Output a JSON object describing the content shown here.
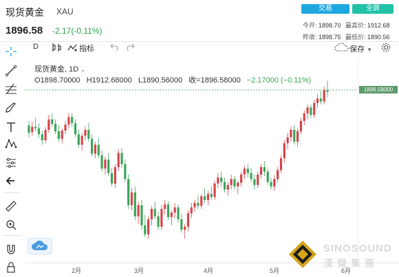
{
  "header": {
    "title": "现货黄金",
    "symbol": "XAU",
    "price": "1896.58",
    "change": "-2.17(-0.11%)",
    "trade_label": "交易",
    "fullscreen_label": "全屏",
    "stats": {
      "open_label": "今开:",
      "open": "1898.70",
      "high_label": "最高价:",
      "high": "1912.68",
      "prev_close_label": "昨收:",
      "prev_close": "1898.75",
      "low_label": "最低价:",
      "low": "1890.56"
    }
  },
  "toolbar": {
    "interval": "D",
    "indicators_label": "指标",
    "save_label": "保存"
  },
  "legend": {
    "name": "现货黄金",
    "interval": "1D",
    "open": "O1898.70000",
    "high": "H1912.68000",
    "low": "L1890.56000",
    "close": "收=1896.58000",
    "change": "−2.17000 (−0.11%)"
  },
  "price_tag": "1896.58000",
  "x_axis": [
    "2月",
    "3月",
    "4月",
    "5月",
    "6月"
  ],
  "watermark": {
    "text_en": "SINOSOUND",
    "text_cn": "漢 聲 集 團"
  },
  "colors": {
    "up": "#d8434a",
    "down": "#3aa55a",
    "accent": "#1fa8e0",
    "price_line": "#2e9d4a"
  },
  "icons": [
    "crosshair-icon",
    "trend-line-icon",
    "fib-icon",
    "brush-icon",
    "text-icon",
    "pattern-icon",
    "measure-icon",
    "back-arrow-icon",
    "ruler-icon",
    "zoom-in-icon",
    "magnet-icon",
    "lock-icon",
    "undo-icon",
    "redo-icon",
    "settings-icon",
    "cloud-icon"
  ],
  "chart_data": {
    "type": "candlestick",
    "ylim": [
      1680,
      1915
    ],
    "candles": [
      [
        1852,
        1858,
        1836,
        1842
      ],
      [
        1843,
        1857,
        1838,
        1850
      ],
      [
        1850,
        1862,
        1844,
        1848
      ],
      [
        1848,
        1855,
        1835,
        1840
      ],
      [
        1840,
        1845,
        1826,
        1832
      ],
      [
        1832,
        1850,
        1828,
        1846
      ],
      [
        1846,
        1866,
        1842,
        1860
      ],
      [
        1860,
        1868,
        1850,
        1854
      ],
      [
        1854,
        1860,
        1840,
        1844
      ],
      [
        1844,
        1852,
        1830,
        1834
      ],
      [
        1834,
        1848,
        1828,
        1845
      ],
      [
        1845,
        1858,
        1840,
        1853
      ],
      [
        1853,
        1868,
        1848,
        1863
      ],
      [
        1863,
        1868,
        1850,
        1855
      ],
      [
        1855,
        1860,
        1836,
        1840
      ],
      [
        1840,
        1846,
        1822,
        1826
      ],
      [
        1826,
        1842,
        1818,
        1838
      ],
      [
        1838,
        1850,
        1832,
        1846
      ],
      [
        1846,
        1855,
        1830,
        1834
      ],
      [
        1834,
        1840,
        1810,
        1814
      ],
      [
        1814,
        1830,
        1808,
        1826
      ],
      [
        1826,
        1835,
        1808,
        1812
      ],
      [
        1812,
        1818,
        1790,
        1794
      ],
      [
        1794,
        1810,
        1786,
        1806
      ],
      [
        1806,
        1815,
        1784,
        1788
      ],
      [
        1788,
        1795,
        1770,
        1774
      ],
      [
        1774,
        1800,
        1768,
        1796
      ],
      [
        1796,
        1820,
        1790,
        1815
      ],
      [
        1815,
        1822,
        1795,
        1800
      ],
      [
        1800,
        1806,
        1776,
        1780
      ],
      [
        1780,
        1786,
        1740,
        1745
      ],
      [
        1745,
        1768,
        1738,
        1762
      ],
      [
        1762,
        1770,
        1725,
        1730
      ],
      [
        1730,
        1750,
        1720,
        1745
      ],
      [
        1745,
        1752,
        1712,
        1718
      ],
      [
        1718,
        1732,
        1702,
        1706
      ],
      [
        1706,
        1730,
        1700,
        1726
      ],
      [
        1726,
        1744,
        1718,
        1740
      ],
      [
        1740,
        1750,
        1726,
        1730
      ],
      [
        1730,
        1736,
        1712,
        1716
      ],
      [
        1716,
        1745,
        1712,
        1740
      ],
      [
        1740,
        1752,
        1732,
        1746
      ],
      [
        1746,
        1750,
        1725,
        1729
      ],
      [
        1729,
        1738,
        1718,
        1735
      ],
      [
        1735,
        1748,
        1728,
        1742
      ],
      [
        1742,
        1746,
        1722,
        1726
      ],
      [
        1726,
        1733,
        1708,
        1712
      ],
      [
        1712,
        1720,
        1700,
        1716
      ],
      [
        1716,
        1738,
        1710,
        1734
      ],
      [
        1734,
        1748,
        1728,
        1742
      ],
      [
        1742,
        1752,
        1736,
        1748
      ],
      [
        1748,
        1758,
        1740,
        1744
      ],
      [
        1744,
        1760,
        1740,
        1757
      ],
      [
        1757,
        1768,
        1748,
        1752
      ],
      [
        1752,
        1764,
        1745,
        1760
      ],
      [
        1760,
        1770,
        1752,
        1756
      ],
      [
        1756,
        1778,
        1752,
        1774
      ],
      [
        1774,
        1788,
        1768,
        1782
      ],
      [
        1782,
        1790,
        1770,
        1776
      ],
      [
        1776,
        1782,
        1762,
        1766
      ],
      [
        1766,
        1776,
        1758,
        1772
      ],
      [
        1772,
        1786,
        1766,
        1780
      ],
      [
        1780,
        1784,
        1766,
        1770
      ],
      [
        1770,
        1778,
        1760,
        1775
      ],
      [
        1775,
        1790,
        1770,
        1786
      ],
      [
        1786,
        1798,
        1780,
        1794
      ],
      [
        1794,
        1800,
        1782,
        1788
      ],
      [
        1788,
        1795,
        1776,
        1780
      ],
      [
        1780,
        1786,
        1766,
        1772
      ],
      [
        1772,
        1790,
        1768,
        1786
      ],
      [
        1786,
        1800,
        1780,
        1796
      ],
      [
        1796,
        1804,
        1784,
        1790
      ],
      [
        1790,
        1794,
        1772,
        1776
      ],
      [
        1776,
        1782,
        1766,
        1770
      ],
      [
        1770,
        1785,
        1764,
        1780
      ],
      [
        1780,
        1796,
        1776,
        1792
      ],
      [
        1792,
        1812,
        1788,
        1808
      ],
      [
        1808,
        1832,
        1802,
        1828
      ],
      [
        1828,
        1842,
        1820,
        1836
      ],
      [
        1836,
        1850,
        1830,
        1846
      ],
      [
        1846,
        1852,
        1826,
        1830
      ],
      [
        1830,
        1848,
        1824,
        1844
      ],
      [
        1844,
        1862,
        1840,
        1858
      ],
      [
        1858,
        1872,
        1852,
        1868
      ],
      [
        1868,
        1880,
        1860,
        1876
      ],
      [
        1876,
        1880,
        1862,
        1866
      ],
      [
        1866,
        1886,
        1862,
        1882
      ],
      [
        1882,
        1894,
        1876,
        1888
      ],
      [
        1888,
        1898,
        1880,
        1884
      ],
      [
        1884,
        1904,
        1880,
        1899
      ],
      [
        1899,
        1912,
        1890,
        1897
      ]
    ]
  }
}
